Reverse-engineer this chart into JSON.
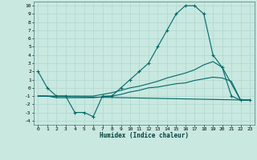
{
  "xlabel": "Humidex (Indice chaleur)",
  "bg_color": "#c8e8e0",
  "grid_color": "#b0d8d0",
  "line_color": "#006868",
  "xlim": [
    -0.5,
    23.5
  ],
  "ylim": [
    -4.5,
    10.5
  ],
  "xticks": [
    0,
    1,
    2,
    3,
    4,
    5,
    6,
    7,
    8,
    9,
    10,
    11,
    12,
    13,
    14,
    15,
    16,
    17,
    18,
    19,
    20,
    21,
    22,
    23
  ],
  "yticks": [
    -4,
    -3,
    -2,
    -1,
    0,
    1,
    2,
    3,
    4,
    5,
    6,
    7,
    8,
    9,
    10
  ],
  "curves": [
    {
      "x": [
        0,
        1,
        2,
        3,
        4,
        5,
        6,
        7,
        8,
        9,
        10,
        11,
        12,
        13,
        14,
        15,
        16,
        17,
        18,
        19,
        20,
        21,
        22,
        23
      ],
      "y": [
        2,
        0,
        -1,
        -1,
        -3,
        -3,
        -3.5,
        -1,
        -1,
        0,
        1,
        2,
        3,
        5,
        7,
        9,
        10,
        10,
        9,
        4,
        2.5,
        -1,
        -1.5,
        -1.5
      ],
      "has_marker": true
    },
    {
      "x": [
        0,
        1,
        2,
        3,
        4,
        5,
        6,
        7,
        8,
        9,
        10,
        11,
        12,
        13,
        14,
        15,
        16,
        17,
        18,
        19,
        20,
        21,
        22,
        23
      ],
      "y": [
        -1,
        -1,
        -1,
        -1,
        -1,
        -1,
        -1,
        -0.8,
        -0.6,
        -0.3,
        0,
        0.2,
        0.5,
        0.8,
        1.2,
        1.5,
        1.8,
        2.2,
        2.8,
        3.2,
        2.5,
        0.5,
        -1.5,
        -1.5
      ],
      "has_marker": false
    },
    {
      "x": [
        0,
        1,
        2,
        3,
        4,
        5,
        6,
        7,
        8,
        9,
        10,
        11,
        12,
        13,
        14,
        15,
        16,
        17,
        18,
        19,
        20,
        21,
        22,
        23
      ],
      "y": [
        -1,
        -1,
        -1.2,
        -1.2,
        -1.2,
        -1.2,
        -1.2,
        -1.1,
        -1.0,
        -0.8,
        -0.5,
        -0.3,
        0,
        0.1,
        0.3,
        0.5,
        0.6,
        0.9,
        1.1,
        1.3,
        1.2,
        0.8,
        -1.5,
        -1.5
      ],
      "has_marker": false
    },
    {
      "x": [
        0,
        23
      ],
      "y": [
        -1,
        -1.5
      ],
      "has_marker": false
    }
  ]
}
